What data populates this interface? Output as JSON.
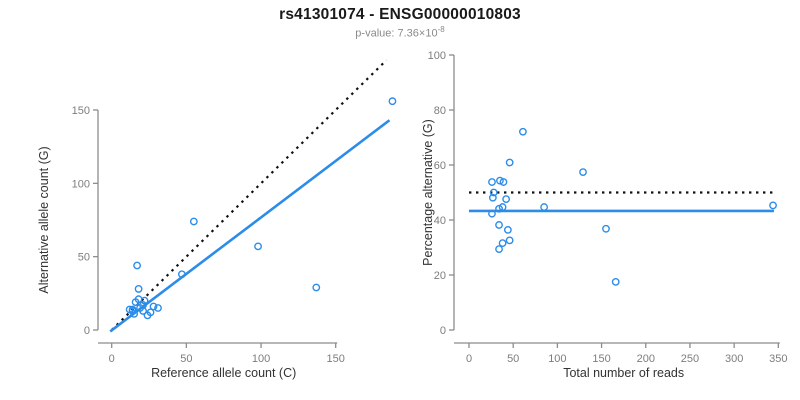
{
  "title": "rs41301074 - ENSG00000010803",
  "subtitle": {
    "prefix": "p-value: 7.36×10",
    "exponent": "-8"
  },
  "colors": {
    "accent_blue": "#2b8cea",
    "dotted_black": "#111111",
    "axis_gray": "#8c8c8c",
    "tick_label_gray": "#7d7d7d",
    "axis_title_color": "#333333",
    "title_color": "#1a1a1a",
    "subtitle_gray": "#8a8a8a"
  },
  "chart_data": [
    {
      "type": "scatter",
      "id": "allele-counts",
      "xlabel": "Reference allele count (C)",
      "ylabel": "Alternative allele count (G)",
      "xticks": [
        0,
        50,
        100,
        150
      ],
      "yticks": [
        0,
        50,
        100,
        150
      ],
      "xlim": [
        0,
        188
      ],
      "ylim": [
        0,
        186
      ],
      "grid": false,
      "legend": "none",
      "marker": "open-circle",
      "points": [
        [
          17,
          44
        ],
        [
          18,
          28
        ],
        [
          55,
          74
        ],
        [
          12,
          14
        ],
        [
          16,
          19
        ],
        [
          18,
          21
        ],
        [
          14,
          14
        ],
        [
          14,
          13
        ],
        [
          22,
          20
        ],
        [
          21,
          17
        ],
        [
          19,
          15
        ],
        [
          47,
          38
        ],
        [
          15,
          11
        ],
        [
          21,
          13
        ],
        [
          28,
          16
        ],
        [
          98,
          57
        ],
        [
          26,
          12
        ],
        [
          31,
          15
        ],
        [
          24,
          10
        ],
        [
          137,
          29
        ],
        [
          188,
          156
        ]
      ],
      "lines": [
        {
          "name": "identity-line",
          "style": "dotted",
          "color": "#111111",
          "points": [
            [
              0,
              0
            ],
            [
              184,
              184
            ]
          ]
        },
        {
          "name": "regression-line",
          "style": "solid",
          "color": "#2b8cea",
          "points": [
            [
              -1,
              -1
            ],
            [
              186,
              143
            ]
          ]
        }
      ]
    },
    {
      "type": "scatter",
      "id": "percentage-vs-reads",
      "xlabel": "Total number of reads",
      "ylabel": "Percentage alternative (G)",
      "xticks": [
        0,
        50,
        100,
        150,
        200,
        250,
        300,
        350
      ],
      "yticks": [
        0,
        20,
        40,
        60,
        80,
        100
      ],
      "xlim": [
        0,
        350
      ],
      "ylim": [
        0,
        100
      ],
      "grid": false,
      "legend": "none",
      "marker": "open-circle",
      "points": [
        [
          61,
          72.1
        ],
        [
          46,
          60.9
        ],
        [
          129,
          57.4
        ],
        [
          26,
          53.8
        ],
        [
          35,
          54.3
        ],
        [
          39,
          53.8
        ],
        [
          28,
          50.0
        ],
        [
          27,
          48.1
        ],
        [
          42,
          47.6
        ],
        [
          38,
          44.7
        ],
        [
          34,
          44.1
        ],
        [
          85,
          44.7
        ],
        [
          26,
          42.3
        ],
        [
          34,
          38.2
        ],
        [
          44,
          36.4
        ],
        [
          155,
          36.8
        ],
        [
          38,
          31.6
        ],
        [
          46,
          32.6
        ],
        [
          34,
          29.4
        ],
        [
          166,
          17.5
        ],
        [
          344,
          45.3
        ]
      ],
      "lines": [
        {
          "name": "expected-50pct-line",
          "style": "dotted",
          "color": "#111111",
          "points": [
            [
              0,
              50
            ],
            [
              345,
              50
            ]
          ]
        },
        {
          "name": "mean-percentage-line",
          "style": "solid",
          "color": "#2b8cea",
          "points": [
            [
              0,
              43.3
            ],
            [
              345,
              43.3
            ]
          ]
        }
      ]
    }
  ]
}
